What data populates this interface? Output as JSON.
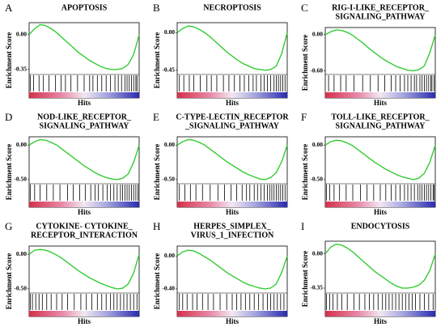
{
  "chart_data": [
    {
      "type": "line",
      "letter": "A",
      "title": [
        "APOPTOSIS"
      ],
      "ylabel": "Enrichment Score",
      "xlabel": "Hits",
      "color": "#33cc33",
      "x": [
        0,
        5,
        10,
        15,
        20,
        25,
        30,
        35,
        40,
        45,
        50,
        55,
        60,
        65,
        70,
        75,
        80,
        85,
        90,
        95,
        100
      ],
      "values": [
        0,
        0.06,
        0.1,
        0.09,
        0.06,
        0.02,
        -0.03,
        -0.08,
        -0.13,
        -0.18,
        -0.22,
        -0.26,
        -0.29,
        -0.32,
        -0.34,
        -0.35,
        -0.35,
        -0.34,
        -0.3,
        -0.2,
        0
      ],
      "xlim": [
        0,
        100
      ],
      "ylim": [
        -0.4,
        0.12
      ],
      "yticks": [
        {
          "value": 0,
          "label": "0.00"
        },
        {
          "value": -0.35,
          "label": "-0.35"
        }
      ],
      "hits": [
        1,
        4,
        9,
        13,
        18,
        24,
        29,
        33,
        38,
        44,
        50,
        55,
        58,
        62,
        66,
        70,
        74,
        78,
        81,
        84,
        87,
        89,
        91,
        93,
        95,
        97,
        98
      ]
    },
    {
      "type": "line",
      "letter": "B",
      "title": [
        "NECROPTOSIS"
      ],
      "ylabel": "Enrichment Score",
      "xlabel": "Hits",
      "color": "#33cc33",
      "x": [
        0,
        5,
        10,
        15,
        20,
        25,
        30,
        35,
        40,
        45,
        50,
        55,
        60,
        65,
        70,
        75,
        80,
        85,
        90,
        95,
        100
      ],
      "values": [
        0,
        0.05,
        0.08,
        0.07,
        0.04,
        0,
        -0.05,
        -0.11,
        -0.17,
        -0.23,
        -0.28,
        -0.33,
        -0.37,
        -0.4,
        -0.43,
        -0.44,
        -0.45,
        -0.44,
        -0.4,
        -0.25,
        0
      ],
      "xlim": [
        0,
        100
      ],
      "ylim": [
        -0.5,
        0.12
      ],
      "yticks": [
        {
          "value": 0,
          "label": "0.00"
        },
        {
          "value": -0.45,
          "label": "-0.45"
        }
      ],
      "hits": [
        2,
        6,
        11,
        15,
        21,
        27,
        31,
        36,
        42,
        47,
        52,
        57,
        61,
        65,
        69,
        72,
        76,
        79,
        82,
        85,
        88,
        90,
        92,
        94,
        96,
        98
      ]
    },
    {
      "type": "line",
      "letter": "C",
      "title": [
        "RIG-I-LIKE_RECEPTOR_",
        "SIGNALING_PATHWAY"
      ],
      "ylabel": "Enrichment Score",
      "xlabel": "Hits",
      "color": "#33cc33",
      "x": [
        0,
        5,
        10,
        15,
        20,
        25,
        30,
        35,
        40,
        45,
        50,
        55,
        60,
        65,
        70,
        75,
        80,
        85,
        90,
        95,
        100
      ],
      "values": [
        0,
        0.05,
        0.08,
        0.07,
        0.04,
        -0.01,
        -0.08,
        -0.15,
        -0.23,
        -0.3,
        -0.37,
        -0.43,
        -0.48,
        -0.53,
        -0.56,
        -0.59,
        -0.6,
        -0.58,
        -0.52,
        -0.3,
        0
      ],
      "xlim": [
        0,
        100
      ],
      "ylim": [
        -0.66,
        0.12
      ],
      "yticks": [
        {
          "value": 0,
          "label": "0.00"
        },
        {
          "value": -0.6,
          "label": "-0.60"
        }
      ],
      "hits": [
        3,
        8,
        14,
        19,
        26,
        34,
        41,
        48,
        54,
        60,
        64,
        68,
        72,
        75,
        78,
        81,
        83,
        86,
        88,
        90,
        92,
        94,
        96,
        97,
        99
      ]
    },
    {
      "type": "line",
      "letter": "D",
      "title": [
        "NOD-LIKE_RECEPTOR_",
        "SIGNALING_PATHWAY"
      ],
      "ylabel": "Enrichment Score",
      "xlabel": "Hits",
      "color": "#33cc33",
      "x": [
        0,
        5,
        10,
        15,
        20,
        25,
        30,
        35,
        40,
        45,
        50,
        55,
        60,
        65,
        70,
        75,
        80,
        85,
        90,
        95,
        100
      ],
      "values": [
        0,
        0.05,
        0.08,
        0.07,
        0.04,
        0,
        -0.06,
        -0.12,
        -0.18,
        -0.24,
        -0.3,
        -0.35,
        -0.4,
        -0.44,
        -0.47,
        -0.49,
        -0.5,
        -0.48,
        -0.42,
        -0.25,
        0
      ],
      "xlim": [
        0,
        100
      ],
      "ylim": [
        -0.56,
        0.12
      ],
      "yticks": [
        {
          "value": 0,
          "label": "0.00"
        },
        {
          "value": -0.5,
          "label": "-0.50"
        }
      ],
      "hits": [
        1,
        5,
        10,
        16,
        22,
        28,
        35,
        40,
        46,
        51,
        56,
        60,
        63,
        67,
        71,
        74,
        77,
        80,
        83,
        85,
        87,
        89,
        91,
        93,
        95,
        97,
        99
      ]
    },
    {
      "type": "line",
      "letter": "E",
      "title": [
        "C-TYPE-LECTIN_RECEPTOR",
        "_SIGNALING_PATHWAY"
      ],
      "ylabel": "Enrichment Score",
      "xlabel": "Hits",
      "color": "#33cc33",
      "x": [
        0,
        5,
        10,
        15,
        20,
        25,
        30,
        35,
        40,
        45,
        50,
        55,
        60,
        65,
        70,
        75,
        80,
        85,
        90,
        95,
        100
      ],
      "values": [
        0,
        0.05,
        0.08,
        0.07,
        0.04,
        0,
        -0.06,
        -0.12,
        -0.18,
        -0.24,
        -0.29,
        -0.34,
        -0.39,
        -0.43,
        -0.46,
        -0.49,
        -0.5,
        -0.47,
        -0.4,
        -0.24,
        0
      ],
      "xlim": [
        0,
        100
      ],
      "ylim": [
        -0.56,
        0.12
      ],
      "yticks": [
        {
          "value": 0,
          "label": "0.00"
        },
        {
          "value": -0.5,
          "label": "-0.50"
        }
      ],
      "hits": [
        2,
        7,
        12,
        17,
        23,
        30,
        37,
        43,
        49,
        54,
        59,
        63,
        66,
        70,
        73,
        76,
        79,
        82,
        84,
        86,
        88,
        90,
        92,
        94,
        96,
        98
      ]
    },
    {
      "type": "line",
      "letter": "F",
      "title": [
        "TOLL-LIKE_RECEPTOR_",
        "SIGNALING_PATHWAY"
      ],
      "ylabel": "Enrichment Score",
      "xlabel": "Hits",
      "color": "#33cc33",
      "x": [
        0,
        5,
        10,
        15,
        20,
        25,
        30,
        35,
        40,
        45,
        50,
        55,
        60,
        65,
        70,
        75,
        80,
        85,
        90,
        95,
        100
      ],
      "values": [
        0,
        0.05,
        0.07,
        0.06,
        0.03,
        -0.01,
        -0.07,
        -0.13,
        -0.19,
        -0.25,
        -0.3,
        -0.35,
        -0.39,
        -0.43,
        -0.46,
        -0.48,
        -0.5,
        -0.48,
        -0.41,
        -0.25,
        0
      ],
      "xlim": [
        0,
        100
      ],
      "ylim": [
        -0.56,
        0.12
      ],
      "yticks": [
        {
          "value": 0,
          "label": "0.00"
        },
        {
          "value": -0.5,
          "label": "-0.50"
        }
      ],
      "hits": [
        1,
        4,
        8,
        13,
        19,
        25,
        32,
        38,
        44,
        50,
        55,
        60,
        64,
        68,
        72,
        75,
        78,
        81,
        84,
        86,
        88,
        90,
        92,
        94,
        96,
        98,
        99
      ]
    },
    {
      "type": "line",
      "letter": "G",
      "title": [
        "CYTOKINE- CYTOKINE_",
        "RECEPTOR_INTERACTION"
      ],
      "ylabel": "Enrichment Score",
      "xlabel": "Hits",
      "color": "#33cc33",
      "x": [
        0,
        5,
        10,
        15,
        20,
        25,
        30,
        35,
        40,
        45,
        50,
        55,
        60,
        65,
        70,
        75,
        80,
        85,
        90,
        95,
        100
      ],
      "values": [
        0,
        0.06,
        0.07,
        0.06,
        0.03,
        -0.01,
        -0.06,
        -0.12,
        -0.18,
        -0.24,
        -0.29,
        -0.34,
        -0.38,
        -0.42,
        -0.45,
        -0.48,
        -0.5,
        -0.49,
        -0.43,
        -0.27,
        0
      ],
      "xlim": [
        0,
        100
      ],
      "ylim": [
        -0.56,
        0.12
      ],
      "yticks": [
        {
          "value": 0,
          "label": "0.00"
        },
        {
          "value": -0.5,
          "label": "-0.50"
        }
      ],
      "hits": [
        1,
        3,
        6,
        9,
        12,
        16,
        20,
        25,
        30,
        35,
        41,
        47,
        52,
        57,
        62,
        66,
        70,
        74,
        77,
        80,
        83,
        86,
        89,
        92,
        95,
        98
      ]
    },
    {
      "type": "line",
      "letter": "H",
      "title": [
        "HERPES_SIMPLEX_",
        "VIRUS_1_INFECTION"
      ],
      "ylabel": "Enrichment Score",
      "xlabel": "Hits",
      "color": "#33cc33",
      "x": [
        0,
        5,
        10,
        15,
        20,
        25,
        30,
        35,
        40,
        45,
        50,
        55,
        60,
        65,
        70,
        75,
        80,
        85,
        90,
        95,
        100
      ],
      "values": [
        0,
        0.05,
        0.07,
        0.06,
        0.03,
        -0.01,
        -0.05,
        -0.1,
        -0.15,
        -0.2,
        -0.24,
        -0.28,
        -0.32,
        -0.35,
        -0.37,
        -0.39,
        -0.4,
        -0.39,
        -0.34,
        -0.2,
        0
      ],
      "xlim": [
        0,
        100
      ],
      "ylim": [
        -0.45,
        0.12
      ],
      "yticks": [
        {
          "value": 0,
          "label": "0.00"
        },
        {
          "value": -0.4,
          "label": "-0.40"
        }
      ],
      "hits": [
        2,
        5,
        9,
        14,
        18,
        23,
        28,
        33,
        39,
        45,
        50,
        54,
        58,
        62,
        66,
        70,
        74,
        78,
        82,
        85,
        88,
        91,
        94,
        97
      ]
    },
    {
      "type": "line",
      "letter": "I",
      "title": [
        "ENDOCYTOSIS"
      ],
      "ylabel": "Enrichment Score",
      "xlabel": "Hits",
      "color": "#33cc33",
      "x": [
        0,
        5,
        10,
        15,
        20,
        25,
        30,
        35,
        40,
        45,
        50,
        55,
        60,
        65,
        70,
        75,
        80,
        85,
        90,
        95,
        100
      ],
      "values": [
        0,
        0.07,
        0.1,
        0.09,
        0.06,
        0.02,
        -0.03,
        -0.08,
        -0.13,
        -0.18,
        -0.22,
        -0.26,
        -0.3,
        -0.33,
        -0.35,
        -0.35,
        -0.34,
        -0.32,
        -0.27,
        -0.17,
        0
      ],
      "xlim": [
        0,
        100
      ],
      "ylim": [
        -0.4,
        0.13
      ],
      "yticks": [
        {
          "value": 0,
          "label": "0.00"
        },
        {
          "value": -0.35,
          "label": "-0.35"
        }
      ],
      "hits": [
        1,
        4,
        7,
        11,
        15,
        20,
        26,
        31,
        36,
        40,
        44,
        48,
        52,
        55,
        58,
        61,
        64,
        67,
        70,
        73,
        76,
        79,
        82,
        86,
        90,
        94,
        98
      ]
    }
  ]
}
